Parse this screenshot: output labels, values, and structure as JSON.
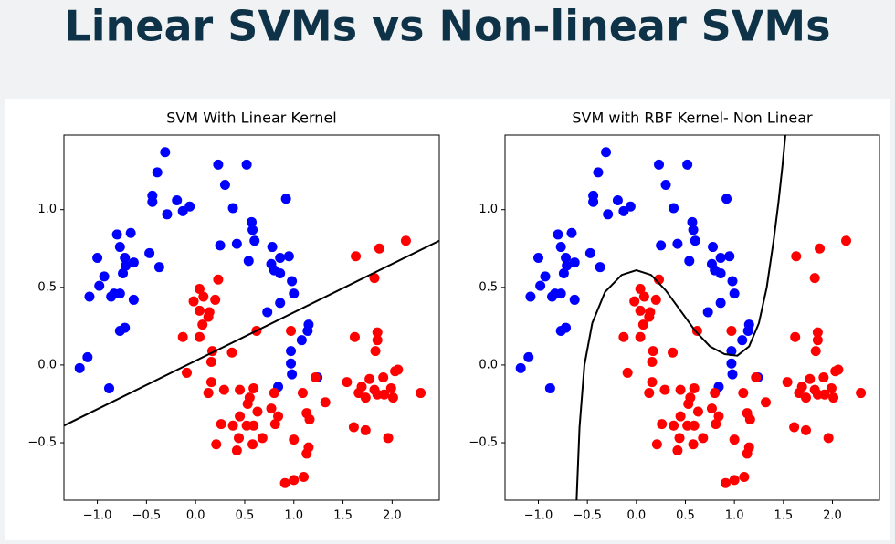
{
  "header": {
    "title": "Linear SVMs vs Non-linear SVMs"
  },
  "chart_data": [
    {
      "type": "scatter",
      "title": "SVM With Linear Kernel",
      "xlim": [
        -1.34,
        2.48
      ],
      "ylim": [
        -0.87,
        1.48
      ],
      "xticks": [
        {
          "value": -1,
          "label": "−1.0"
        },
        {
          "value": -0.5,
          "label": "−0.5"
        },
        {
          "value": 0,
          "label": "0.0"
        },
        {
          "value": 0.5,
          "label": "0.5"
        },
        {
          "value": 1,
          "label": "1.0"
        },
        {
          "value": 1.5,
          "label": "1.5"
        },
        {
          "value": 2,
          "label": "2.0"
        }
      ],
      "yticks": [
        {
          "value": -0.5,
          "label": "−0.5"
        },
        {
          "value": 0,
          "label": "0.0"
        },
        {
          "value": 0.5,
          "label": "0.5"
        },
        {
          "value": 1,
          "label": "1.0"
        }
      ],
      "series": [
        {
          "color": "blue",
          "mode": "markers",
          "x": [
            -0.31,
            -0.39,
            -0.44,
            -0.44,
            -0.29,
            -0.19,
            -0.13,
            -0.06,
            0.23,
            0.52,
            0.3,
            0.38,
            0.57,
            0.58,
            0.6,
            0.25,
            0.42,
            0.54,
            0.92,
            0.78,
            0.86,
            0.95,
            0.8,
            0.86,
            0.98,
            0.77,
            1.0,
            0.73,
            0.86,
            1.15,
            1.14,
            1.08,
            0.97,
            0.97,
            0.98,
            0.84,
            1.24,
            -1.0,
            -0.77,
            -0.66,
            -0.8,
            -0.72,
            -0.63,
            -0.71,
            -0.74,
            -0.93,
            -0.98,
            -1.08,
            -0.83,
            -0.86,
            -0.77,
            -0.63,
            -0.72,
            -0.77,
            -0.47,
            -0.37,
            -1.1,
            -1.18,
            -0.88
          ],
          "values": [
            1.37,
            1.24,
            1.09,
            1.05,
            0.97,
            1.06,
            0.99,
            1.02,
            1.29,
            1.29,
            1.16,
            1.01,
            0.92,
            0.87,
            0.8,
            0.77,
            0.78,
            0.67,
            1.07,
            0.76,
            0.69,
            0.7,
            0.61,
            0.59,
            0.54,
            0.65,
            0.46,
            0.34,
            0.4,
            0.26,
            0.22,
            0.16,
            0.09,
            0.01,
            -0.06,
            -0.14,
            -0.08,
            0.69,
            0.76,
            0.85,
            0.84,
            0.69,
            0.66,
            0.64,
            0.59,
            0.57,
            0.51,
            0.44,
            0.46,
            0.44,
            0.46,
            0.42,
            0.24,
            0.22,
            0.72,
            0.63,
            0.05,
            -0.02,
            -0.15
          ]
        },
        {
          "color": "red",
          "mode": "markers",
          "x": [
            1.87,
            2.14,
            1.63,
            1.82,
            1.85,
            1.85,
            1.62,
            1.83,
            1.77,
            1.54,
            1.69,
            1.66,
            1.82,
            1.91,
            1.99,
            2.03,
            2.06,
            2.01,
            2.29,
            1.85,
            1.73,
            1.92,
            1.61,
            1.73,
            1.96,
            1.32,
            1.22,
            1.09,
            1.13,
            1.16,
            1.0,
            1.15,
            1.13,
            1.1,
            1.0,
            0.91,
            0.84,
            0.81,
            0.77,
            0.8,
            0.59,
            0.55,
            0.53,
            0.63,
            0.59,
            0.68,
            0.58,
            0.44,
            0.42,
            0.52,
            0.45,
            0.38,
            0.26,
            0.21,
            0.29,
            0.45,
            0.16,
            0.13,
            0.17,
            0.16,
            0.37,
            0.04,
            0.07,
            0.13,
            0.04,
            0.14,
            -0.02,
            0.04,
            0.08,
            0.2,
            0.23,
            -0.13,
            -0.09,
            0.62,
            0.97
          ],
          "values": [
            0.75,
            0.8,
            0.7,
            0.56,
            0.21,
            0.16,
            0.18,
            0.09,
            -0.09,
            -0.11,
            -0.14,
            -0.18,
            -0.16,
            -0.08,
            -0.15,
            -0.04,
            -0.03,
            -0.21,
            -0.18,
            -0.19,
            -0.21,
            -0.19,
            -0.4,
            -0.42,
            -0.47,
            -0.24,
            -0.08,
            -0.18,
            -0.31,
            -0.35,
            -0.48,
            -0.53,
            -0.57,
            -0.72,
            -0.74,
            -0.76,
            -0.33,
            -0.38,
            -0.28,
            -0.18,
            -0.15,
            -0.21,
            -0.25,
            -0.3,
            -0.39,
            -0.47,
            -0.51,
            -0.47,
            -0.55,
            -0.39,
            -0.33,
            -0.39,
            -0.38,
            -0.51,
            -0.16,
            -0.16,
            -0.11,
            -0.18,
            0.09,
            0.02,
            0.08,
            0.18,
            0.26,
            0.31,
            0.35,
            0.34,
            0.41,
            0.49,
            0.44,
            0.42,
            0.55,
            0.18,
            -0.05,
            0.22,
            0.22
          ]
        },
        {
          "color": "black",
          "mode": "line",
          "x": [
            -1.34,
            2.48
          ],
          "values": [
            -0.39,
            0.8
          ]
        }
      ]
    },
    {
      "type": "scatter",
      "title": "SVM with RBF Kernel- Non Linear",
      "xlim": [
        -1.34,
        2.48
      ],
      "ylim": [
        -0.87,
        1.48
      ],
      "xticks": [
        {
          "value": -1,
          "label": "−1.0"
        },
        {
          "value": -0.5,
          "label": "−0.5"
        },
        {
          "value": 0,
          "label": "0.0"
        },
        {
          "value": 0.5,
          "label": "0.5"
        },
        {
          "value": 1,
          "label": "1.0"
        },
        {
          "value": 1.5,
          "label": "1.5"
        },
        {
          "value": 2,
          "label": "2.0"
        }
      ],
      "yticks": [
        {
          "value": -0.5,
          "label": "−0.5"
        },
        {
          "value": 0,
          "label": "0.0"
        },
        {
          "value": 0.5,
          "label": "0.5"
        },
        {
          "value": 1,
          "label": "1.0"
        }
      ],
      "series": [
        {
          "color": "blue",
          "mode": "markers",
          "x": [
            -0.31,
            -0.39,
            -0.44,
            -0.44,
            -0.29,
            -0.19,
            -0.13,
            -0.06,
            0.23,
            0.52,
            0.3,
            0.38,
            0.57,
            0.58,
            0.6,
            0.25,
            0.42,
            0.54,
            0.92,
            0.78,
            0.86,
            0.95,
            0.8,
            0.86,
            0.98,
            0.77,
            1.0,
            0.73,
            0.86,
            1.15,
            1.14,
            1.08,
            0.97,
            0.97,
            0.98,
            0.84,
            1.24,
            -1.0,
            -0.77,
            -0.66,
            -0.8,
            -0.72,
            -0.63,
            -0.71,
            -0.74,
            -0.93,
            -0.98,
            -1.08,
            -0.83,
            -0.86,
            -0.77,
            -0.63,
            -0.72,
            -0.77,
            -0.47,
            -0.37,
            -1.1,
            -1.18,
            -0.88
          ],
          "values": [
            1.37,
            1.24,
            1.09,
            1.05,
            0.97,
            1.06,
            0.99,
            1.02,
            1.29,
            1.29,
            1.16,
            1.01,
            0.92,
            0.87,
            0.8,
            0.77,
            0.78,
            0.67,
            1.07,
            0.76,
            0.69,
            0.7,
            0.61,
            0.59,
            0.54,
            0.65,
            0.46,
            0.34,
            0.4,
            0.26,
            0.22,
            0.16,
            0.09,
            0.01,
            -0.06,
            -0.14,
            -0.08,
            0.69,
            0.76,
            0.85,
            0.84,
            0.69,
            0.66,
            0.64,
            0.59,
            0.57,
            0.51,
            0.44,
            0.46,
            0.44,
            0.46,
            0.42,
            0.24,
            0.22,
            0.72,
            0.63,
            0.05,
            -0.02,
            -0.15
          ]
        },
        {
          "color": "red",
          "mode": "markers",
          "x": [
            1.87,
            2.14,
            1.63,
            1.82,
            1.85,
            1.85,
            1.62,
            1.83,
            1.77,
            1.54,
            1.69,
            1.66,
            1.82,
            1.91,
            1.99,
            2.03,
            2.06,
            2.01,
            2.29,
            1.85,
            1.73,
            1.92,
            1.61,
            1.73,
            1.96,
            1.32,
            1.22,
            1.09,
            1.13,
            1.16,
            1.0,
            1.15,
            1.13,
            1.1,
            1.0,
            0.91,
            0.84,
            0.81,
            0.77,
            0.8,
            0.59,
            0.55,
            0.53,
            0.63,
            0.59,
            0.68,
            0.58,
            0.44,
            0.42,
            0.52,
            0.45,
            0.38,
            0.26,
            0.21,
            0.29,
            0.45,
            0.16,
            0.13,
            0.17,
            0.16,
            0.37,
            0.04,
            0.07,
            0.13,
            0.04,
            0.14,
            -0.02,
            0.04,
            0.08,
            0.2,
            0.23,
            -0.13,
            -0.09,
            0.62,
            0.97
          ],
          "values": [
            0.75,
            0.8,
            0.7,
            0.56,
            0.21,
            0.16,
            0.18,
            0.09,
            -0.09,
            -0.11,
            -0.14,
            -0.18,
            -0.16,
            -0.08,
            -0.15,
            -0.04,
            -0.03,
            -0.21,
            -0.18,
            -0.19,
            -0.21,
            -0.19,
            -0.4,
            -0.42,
            -0.47,
            -0.24,
            -0.08,
            -0.18,
            -0.31,
            -0.35,
            -0.48,
            -0.53,
            -0.57,
            -0.72,
            -0.74,
            -0.76,
            -0.33,
            -0.38,
            -0.28,
            -0.18,
            -0.15,
            -0.21,
            -0.25,
            -0.3,
            -0.39,
            -0.47,
            -0.51,
            -0.47,
            -0.55,
            -0.39,
            -0.33,
            -0.39,
            -0.38,
            -0.51,
            -0.16,
            -0.16,
            -0.11,
            -0.18,
            0.09,
            0.02,
            0.08,
            0.18,
            0.26,
            0.31,
            0.35,
            0.34,
            0.41,
            0.49,
            0.44,
            0.42,
            0.55,
            0.18,
            -0.05,
            0.22,
            0.22
          ]
        },
        {
          "color": "black",
          "mode": "line",
          "x": [
            -0.61,
            -0.58,
            -0.53,
            -0.45,
            -0.32,
            -0.15,
            0.0,
            0.15,
            0.3,
            0.45,
            0.6,
            0.75,
            0.9,
            1.03,
            1.15,
            1.25,
            1.33,
            1.4,
            1.45,
            1.49,
            1.52
          ],
          "values": [
            -0.87,
            -0.4,
            0.0,
            0.27,
            0.47,
            0.58,
            0.61,
            0.58,
            0.48,
            0.35,
            0.22,
            0.12,
            0.07,
            0.06,
            0.12,
            0.27,
            0.5,
            0.8,
            1.05,
            1.28,
            1.48
          ]
        }
      ]
    }
  ]
}
